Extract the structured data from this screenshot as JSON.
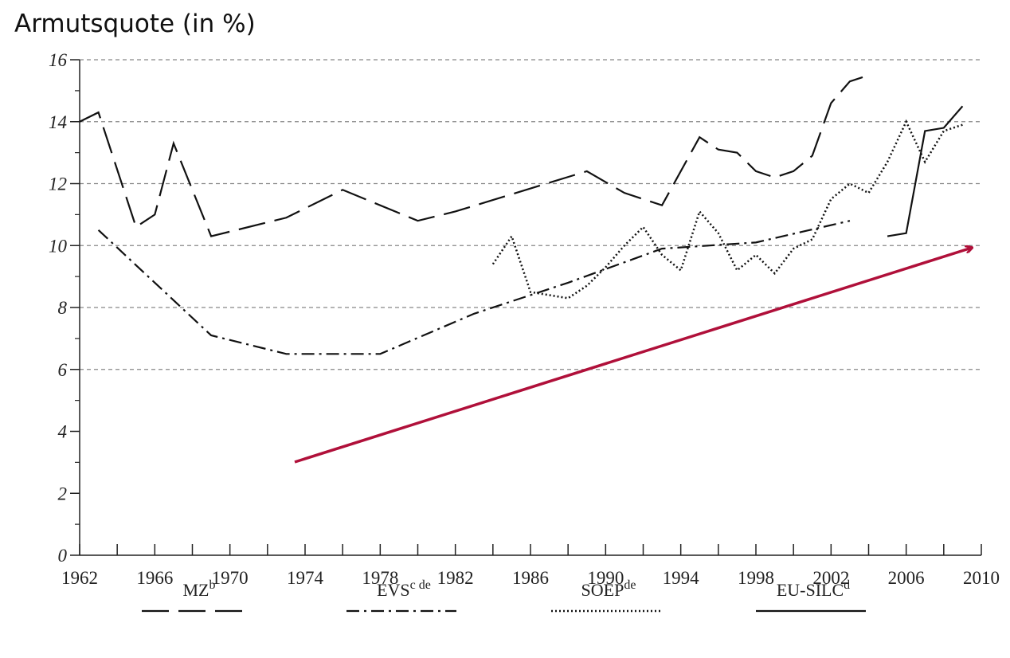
{
  "chart_data": {
    "type": "line",
    "title": "Armutsquote (in %)",
    "xlim": [
      1962,
      2010
    ],
    "xticks": [
      1962,
      1966,
      1970,
      1974,
      1978,
      1982,
      1986,
      1990,
      1994,
      1998,
      2002,
      2006,
      2010
    ],
    "xminor": [
      1964,
      1968,
      1972,
      1976,
      1980,
      1984,
      1988,
      1992,
      1996,
      2000,
      2004,
      2008
    ],
    "ylim": [
      0,
      16
    ],
    "yticks": [
      0,
      2,
      4,
      6,
      8,
      10,
      12,
      14,
      16
    ],
    "yminor": [
      1,
      3,
      5,
      7,
      9,
      11,
      13,
      15
    ],
    "gridlines": [
      6,
      8,
      10,
      12,
      14,
      16
    ],
    "legend": "bottom",
    "series": [
      {
        "name": "MZ",
        "name_sup": "b",
        "color": "#111111",
        "style": "longdash",
        "x": [
          1962,
          1963,
          1965,
          1966,
          1967,
          1969,
          1973,
          1976,
          1980,
          1982,
          1989,
          1991,
          1993,
          1995,
          1996,
          1997,
          1998,
          1999,
          2000,
          2001,
          2002,
          2003,
          2004
        ],
        "values": [
          14.0,
          14.3,
          10.6,
          11.0,
          13.3,
          10.3,
          10.9,
          11.8,
          10.8,
          11.1,
          12.4,
          11.7,
          11.3,
          13.5,
          13.1,
          13.0,
          12.4,
          12.2,
          12.4,
          12.9,
          14.6,
          15.3,
          15.5
        ]
      },
      {
        "name": "EVS",
        "name_sup": "c de",
        "color": "#111111",
        "style": "dashdot",
        "x": [
          1963,
          1969,
          1973,
          1978,
          1983,
          1988,
          1993,
          1998,
          2003
        ],
        "values": [
          10.5,
          7.1,
          6.5,
          6.5,
          7.8,
          8.8,
          9.9,
          10.1,
          10.8
        ]
      },
      {
        "name": "SOEP",
        "name_sup": "de",
        "color": "#111111",
        "style": "dotted",
        "x": [
          1984,
          1985,
          1986,
          1987,
          1988,
          1989,
          1990,
          1991,
          1992,
          1993,
          1994,
          1995,
          1996,
          1997,
          1998,
          1999,
          2000,
          2001,
          2002,
          2003,
          2004,
          2005,
          2006,
          2007,
          2008,
          2009
        ],
        "values": [
          9.4,
          10.3,
          8.5,
          8.4,
          8.3,
          8.7,
          9.3,
          10.0,
          10.6,
          9.7,
          9.2,
          11.1,
          10.4,
          9.2,
          9.7,
          9.1,
          9.9,
          10.2,
          11.5,
          12.0,
          11.7,
          12.7,
          14.0,
          12.7,
          13.7,
          13.9
        ]
      },
      {
        "name": "EU-SILC",
        "name_sup": "d",
        "color": "#111111",
        "style": "solid",
        "x": [
          2005,
          2006,
          2007,
          2008,
          2009
        ],
        "values": [
          10.3,
          10.4,
          13.7,
          13.8,
          14.5
        ]
      }
    ]
  }
}
